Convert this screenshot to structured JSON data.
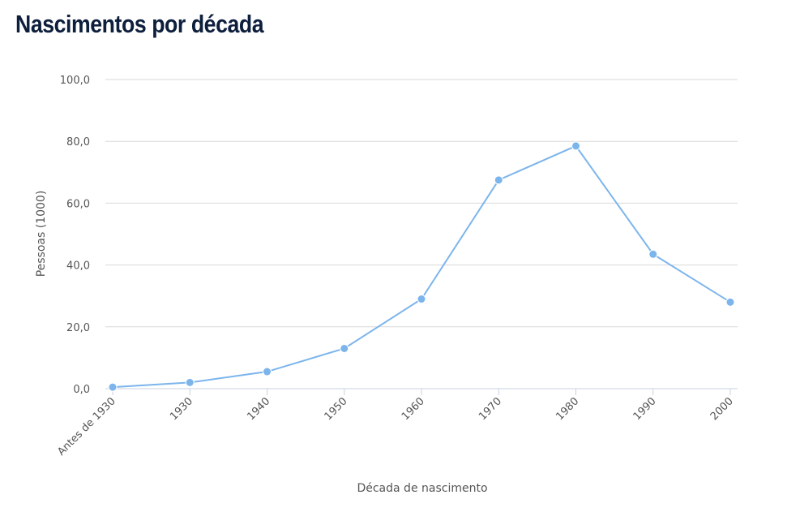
{
  "chart_data": {
    "type": "line",
    "title": "Nascimentos por década",
    "xlabel": "Década de nascimento",
    "ylabel": "Pessoas (1000)",
    "categories": [
      "Antes de 1930",
      "1930",
      "1940",
      "1950",
      "1960",
      "1970",
      "1980",
      "1990",
      "2000"
    ],
    "series": [
      {
        "values": [
          0.5,
          2.0,
          5.5,
          13.0,
          29.0,
          67.5,
          78.5,
          43.5,
          28.0
        ]
      }
    ],
    "ylim": [
      0,
      100
    ],
    "yticks": [
      "0,0",
      "20,0",
      "40,0",
      "60,0",
      "80,0",
      "100,0"
    ],
    "ytick_values": [
      0,
      20,
      40,
      60,
      80,
      100
    ],
    "grid": true,
    "legend": "none",
    "color": "#7cb5ec"
  }
}
